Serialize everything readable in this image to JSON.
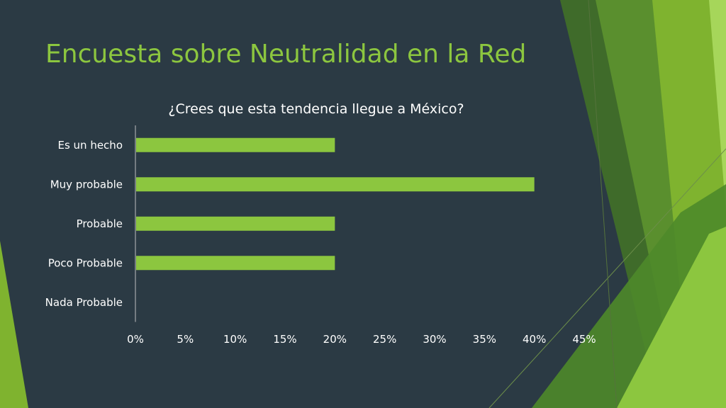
{
  "slide": {
    "title": "Encuesta sobre Neutralidad en la Red",
    "accent_color": "#8cc63f",
    "background_color": "#2b3a44"
  },
  "chart_data": {
    "type": "bar",
    "orientation": "horizontal",
    "title": "¿Crees que esta tendencia llegue a México?",
    "categories": [
      "Es un hecho",
      "Muy probable",
      "Probable",
      "Poco Probable",
      "Nada Probable"
    ],
    "values": [
      20,
      40,
      20,
      20,
      0
    ],
    "value_unit": "%",
    "xlim": [
      0,
      45
    ],
    "x_ticks": [
      0,
      5,
      10,
      15,
      20,
      25,
      30,
      35,
      40,
      45
    ],
    "x_tick_labels": [
      "0%",
      "5%",
      "10%",
      "15%",
      "20%",
      "25%",
      "30%",
      "35%",
      "40%",
      "45%"
    ],
    "xlabel": "",
    "ylabel": "",
    "grid": false,
    "legend": "none",
    "bar_color": "#8cc63f"
  }
}
